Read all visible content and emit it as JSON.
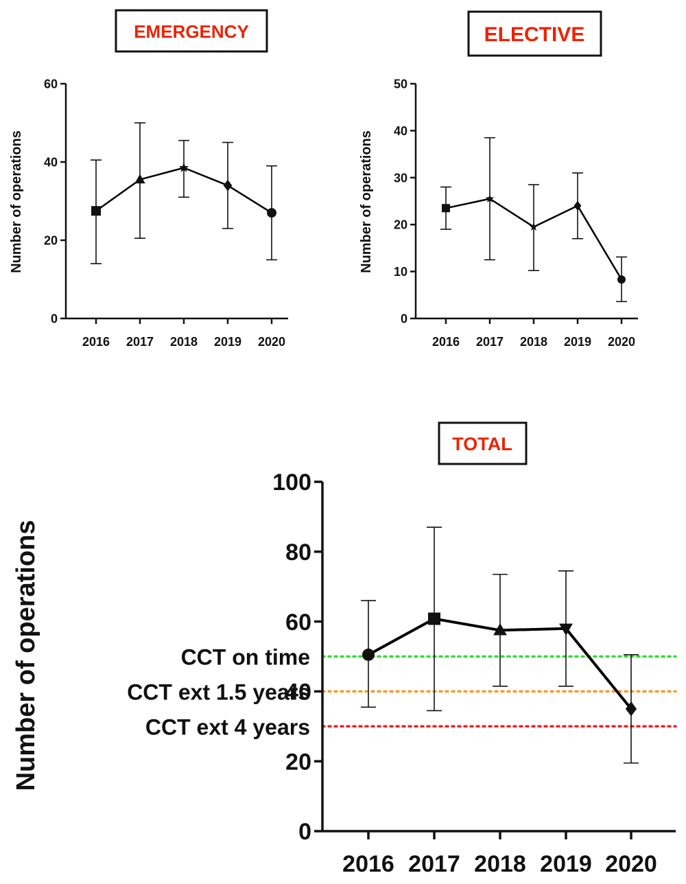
{
  "chart_data": [
    {
      "type": "line",
      "title": "EMERGENCY",
      "xlabel": "",
      "ylabel": "Number of operations",
      "categories": [
        "2016",
        "2017",
        "2018",
        "2019",
        "2020"
      ],
      "ylim": [
        0,
        60
      ],
      "yticks": [
        "0",
        "20",
        "40",
        "60"
      ],
      "grid": false,
      "values": [
        27.5,
        35.5,
        38.5,
        34,
        27
      ],
      "error_low": [
        14,
        20.5,
        31,
        23,
        15
      ],
      "error_high": [
        40.5,
        50,
        45.5,
        45,
        39
      ],
      "markers": [
        "square",
        "triangle",
        "star",
        "diamond",
        "circle"
      ]
    },
    {
      "type": "line",
      "title": "ELECTIVE",
      "xlabel": "",
      "ylabel": "Number of operations",
      "categories": [
        "2016",
        "2017",
        "2018",
        "2019",
        "2020"
      ],
      "ylim": [
        0,
        50
      ],
      "yticks": [
        "0",
        "10",
        "20",
        "30",
        "40",
        "50"
      ],
      "grid": false,
      "values": [
        23.5,
        25.5,
        19.5,
        24,
        8.3
      ],
      "error_low": [
        19,
        12.5,
        10.2,
        17,
        3.6
      ],
      "error_high": [
        28,
        38.5,
        28.5,
        31,
        13.1
      ],
      "markers": [
        "square",
        "star",
        "star",
        "diamond",
        "circle"
      ]
    },
    {
      "type": "line",
      "title": "TOTAL",
      "xlabel": "",
      "ylabel": "Number of operations",
      "categories": [
        "2016",
        "2017",
        "2018",
        "2019",
        "2020"
      ],
      "ylim": [
        0,
        100
      ],
      "yticks": [
        "0",
        "20",
        "40",
        "60",
        "80",
        "100"
      ],
      "grid": false,
      "values": [
        50.5,
        60.8,
        57.5,
        58,
        35
      ],
      "error_low": [
        35.5,
        34.5,
        41.5,
        41.5,
        19.5
      ],
      "error_high": [
        66,
        87,
        73.5,
        74.5,
        50.5
      ],
      "markers": [
        "circle",
        "square",
        "triangle",
        "triangle-down",
        "diamond"
      ],
      "reference_lines": [
        {
          "label": "CCT on time",
          "value": 50,
          "color": "#33dd33"
        },
        {
          "label": "CCT ext 1.5 years",
          "value": 40,
          "color": "#ff9922"
        },
        {
          "label": "CCT ext 4 years",
          "value": 30,
          "color": "#ee2222"
        }
      ]
    }
  ],
  "colors": {
    "title": "#ee2200",
    "line": "#000000"
  }
}
